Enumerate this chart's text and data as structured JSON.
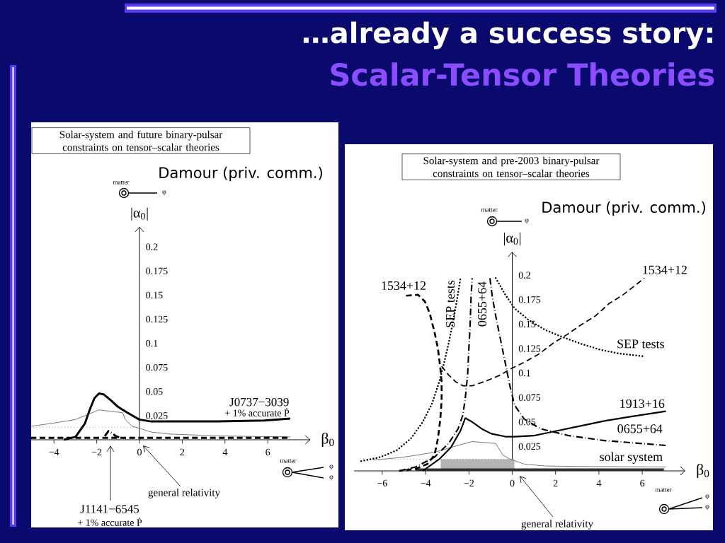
{
  "chart_data": [
    {
      "type": "line",
      "title": "Solar-system and future binary-pulsar constraints on tensor–scalar theories",
      "xlabel": "β$_{0}$",
      "ylabel": "|α$_{0}$|",
      "xlim": [
        -5.1,
        8
      ],
      "ylim": [
        0,
        0.221
      ],
      "xticks": [
        {
          "value": -4,
          "label": "−4"
        },
        {
          "value": -2,
          "label": "−2"
        },
        0,
        2,
        4,
        6
      ],
      "yticks": [
        0.025,
        0.05,
        0.075,
        0.1,
        0.125,
        0.15,
        0.175,
        0.2
      ],
      "series": [
        {
          "name": "J0737−3039",
          "color": "#000000",
          "line_style": "solid",
          "x": [
            -3.54,
            -2.99,
            -2.55,
            -2.33,
            -2.11,
            -1.89,
            -1.67,
            -1.34,
            -1.0,
            -0.56,
            -0.01,
            0.54,
            1.42,
            3.63,
            5.84,
            7.05
          ],
          "values": [
            0,
            0.003,
            0.017,
            0.031,
            0.043,
            0.048,
            0.047,
            0.041,
            0.034,
            0.028,
            0.021,
            0.019,
            0.019,
            0.019,
            0.02,
            0.022
          ]
        },
        {
          "color": "#555555",
          "line_style": "solid",
          "x": [
            -5.09,
            -4.1,
            -2.99,
            -2.44,
            -1.89,
            -0.78,
            -0.67,
            -0.34,
            -0.01,
            0.54,
            1.42,
            3.63,
            7.05
          ],
          "values": [
            0.014,
            0.017,
            0.021,
            0.026,
            0.031,
            0.028,
            0.021,
            0.014,
            0.012,
            0.008,
            0.006,
            0.004,
            0.003
          ]
        },
        {
          "color": "#555555",
          "line_style": "dotted",
          "x": [
            -5.09,
            0
          ],
          "values": [
            0.013,
            0.013
          ]
        },
        {
          "color": "#000000",
          "line_style": "dashdot",
          "x": [
            -1.62,
            -1.45,
            -1.29,
            -1.12,
            -0.9
          ],
          "values": [
            0.004,
            0.009,
            0.007,
            0.004,
            0.002
          ]
        },
        {
          "color": "#000000",
          "line_style": "dashed",
          "x": [
            -5.09,
            7.05
          ],
          "values": [
            0.002,
            0.002
          ]
        }
      ],
      "annotations": [
        "…already a success story:",
        "Scalar-Tensor Theories",
        "Damour (priv. comm.)",
        "+ 1% accurate Ṗ",
        "J1141−6545",
        "+ 1% accurate Ṗ",
        "general relativity",
        "matter",
        "φ",
        "matter",
        "φ",
        "φ"
      ]
    },
    {
      "type": "line",
      "title": "Solar-system and pre-2003 binary-pulsar constraints on tensor–scalar theories",
      "xlabel": "β$_{0}$",
      "ylabel": "|α$_{0}$|",
      "xlim": [
        -7.3,
        8
      ],
      "ylim": [
        0,
        0.224
      ],
      "xticks": [
        {
          "value": -6,
          "label": "−6"
        },
        {
          "value": -4,
          "label": "−4"
        },
        {
          "value": -2,
          "label": "−2"
        },
        0,
        2,
        4,
        6
      ],
      "yticks": [
        0.025,
        0.05,
        0.075,
        0.1,
        0.125,
        0.15,
        0.175,
        0.2
      ],
      "series": [
        {
          "type": "area",
          "color": "#b4b4b4",
          "x": [
            -3.3,
            0.1
          ],
          "values": [
            0.012,
            0.012
          ]
        },
        {
          "type": "area",
          "name": "solar system",
          "color": "#303030",
          "x": [
            -4.46,
            7.0
          ],
          "values": [
            0.0025,
            0.0025
          ]
        },
        {
          "color": "#555555",
          "line_style": "solid",
          "x": [
            -6.42,
            -5.01,
            -3.59,
            -2.83,
            -1.85,
            -0.76,
            -0.65,
            -0.43,
            -0.1,
            0.55,
            1.53,
            3.16,
            7.09
          ],
          "values": [
            0.011,
            0.014,
            0.019,
            0.024,
            0.03,
            0.028,
            0.024,
            0.016,
            0.012,
            0.007,
            0.005,
            0.0045,
            0.004
          ]
        },
        {
          "color": "#555555",
          "line_style": "dotted",
          "x": [
            -7.0,
            0
          ],
          "values": [
            0.012,
            0.012
          ]
        },
        {
          "name": "1913+16",
          "color": "#000000",
          "line_style": "solid",
          "x": [
            -4.13,
            -3.37,
            -2.83,
            -2.39,
            -2.17,
            -1.85,
            -1.41,
            -0.97,
            -0.32,
            0.11,
            0.99,
            2.08,
            3.16,
            4.25,
            5.34,
            7.09
          ],
          "values": [
            0,
            0.012,
            0.024,
            0.041,
            0.054,
            0.05,
            0.043,
            0.038,
            0.035,
            0.035,
            0.036,
            0.041,
            0.046,
            0.051,
            0.055,
            0.061
          ]
        },
        {
          "name": "1534+12",
          "color": "#000000",
          "line_style": "dashed",
          "x": [
            -3.26,
            -2.94,
            -2.61,
            -2.28,
            -1.85,
            -1.19,
            -0.54,
            -0.1,
            0.55,
            1.2,
            1.86,
            2.51,
            3.16,
            3.82,
            4.47,
            5.12,
            6.1
          ],
          "values": [
            0.107,
            0.098,
            0.091,
            0.087,
            0.087,
            0.092,
            0.098,
            0.104,
            0.111,
            0.119,
            0.13,
            0.139,
            0.149,
            0.158,
            0.171,
            0.18,
            0.197
          ]
        },
        {
          "color": "#000000",
          "line_style": "dashed",
          "x": [
            -4.9,
            -4.35,
            -4.03,
            -3.81,
            -3.59,
            -3.43,
            -3.32,
            -3.26,
            -3.26,
            -3.32,
            -3.43,
            -3.59,
            -3.92,
            -4.46,
            -5.22
          ],
          "values": [
            0.179,
            0.18,
            0.173,
            0.161,
            0.142,
            0.125,
            0.105,
            0.091,
            0.072,
            0.053,
            0.033,
            0.016,
            0.007,
            0.002,
            0
          ]
        },
        {
          "name": "SEP tests",
          "color": "#000000",
          "line_style": "dotted",
          "x": [
            -0.76,
            -0.32,
            0.11,
            0.77,
            1.53,
            2.29,
            3.16,
            4.04,
            4.91,
            6.1
          ],
          "values": [
            0.197,
            0.18,
            0.166,
            0.154,
            0.144,
            0.137,
            0.13,
            0.124,
            0.12,
            0.117
          ]
        },
        {
          "color": "#000000",
          "line_style": "dotted",
          "x": [
            -6.97,
            -6.09,
            -5.33,
            -4.68,
            -4.13,
            -3.7,
            -3.37,
            -3.15,
            -2.94,
            -2.72,
            -2.55,
            -2.39
          ],
          "values": [
            0.01,
            0.014,
            0.021,
            0.033,
            0.05,
            0.069,
            0.091,
            0.11,
            0.13,
            0.154,
            0.175,
            0.197
          ]
        },
        {
          "name": "0655+64",
          "color": "#000000",
          "line_style": "dashdot",
          "x": [
            -1.03,
            -0.92,
            -0.76,
            -0.54,
            -0.32,
            -0.1,
            0.11,
            0.55,
            1.31,
            2.62,
            4.25,
            7.09
          ],
          "values": [
            0.197,
            0.178,
            0.158,
            0.134,
            0.11,
            0.086,
            0.067,
            0.053,
            0.043,
            0.036,
            0.031,
            0.026
          ]
        },
        {
          "color": "#000000",
          "line_style": "dashdot",
          "x": [
            -5.22,
            -4.46,
            -3.59,
            -2.94,
            -2.5,
            -2.28,
            -2.17,
            -2.06,
            -2.01,
            -1.95,
            -1.9,
            -1.85
          ],
          "values": [
            0,
            0.004,
            0.014,
            0.028,
            0.043,
            0.057,
            0.074,
            0.098,
            0.122,
            0.146,
            0.178,
            0.197
          ]
        }
      ],
      "annotations": [
        "Damour (priv. comm.)",
        "1534+12",
        "SEP tests",
        "0655+64",
        "general relativity",
        "matter",
        "φ",
        "matter",
        "φ",
        "φ"
      ]
    }
  ]
}
